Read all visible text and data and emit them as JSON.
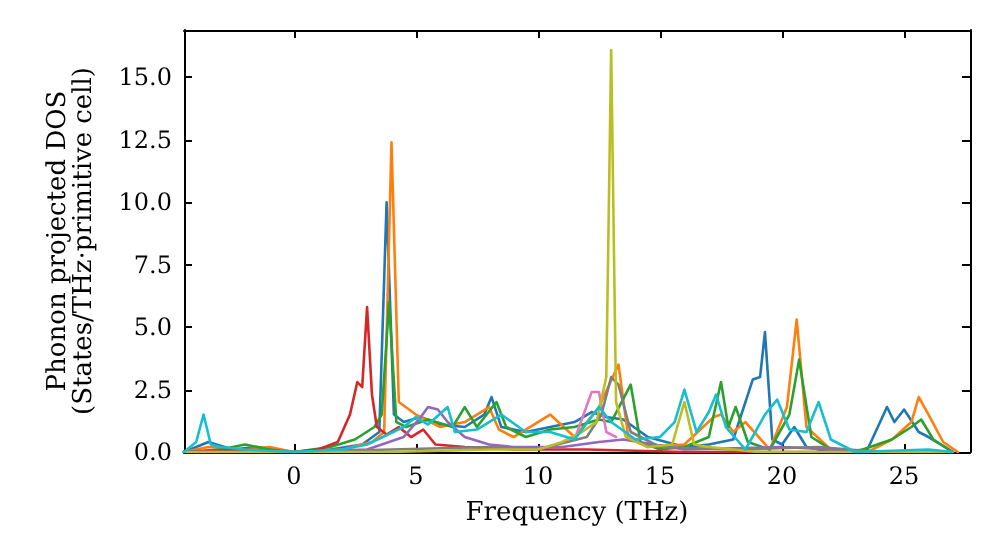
{
  "chart_data": {
    "type": "line",
    "xlabel": "Frequency (THz)",
    "ylabel": "Phonon projected DOS\n(States/THz·primitive cell)",
    "xlim": [
      -4.5,
      27.7
    ],
    "xticks": [
      0,
      5,
      10,
      15,
      20,
      25
    ],
    "ylim": [
      0,
      16.9
    ],
    "yticks": [
      {
        "value": 0,
        "label": "0.0"
      },
      {
        "value": 2.5,
        "label": "2.5"
      },
      {
        "value": 5,
        "label": "5.0"
      },
      {
        "value": 7.5,
        "label": "7.5"
      },
      {
        "value": 10,
        "label": "10.0"
      },
      {
        "value": 12.5,
        "label": "12.5"
      },
      {
        "value": 15,
        "label": "15.0"
      }
    ],
    "grid": false,
    "marker": "none",
    "line_style": "solid",
    "series": [
      {
        "color": "#1f77b4",
        "x": [
          -4.5,
          -3.5,
          -2.5,
          -1.5,
          0,
          1.5,
          2.8,
          3.5,
          3.8,
          4.1,
          4.5,
          5.2,
          6,
          7,
          7.8,
          8.1,
          8.5,
          9.5,
          10.5,
          11.5,
          12.2,
          12.8,
          13.5,
          14.5,
          16,
          17,
          18,
          18.8,
          19.1,
          19.3,
          19.6,
          20,
          20.5,
          21,
          22,
          23.5,
          24.3,
          24.6,
          25,
          25.6,
          26,
          27
        ],
        "values": [
          0,
          0.4,
          0.1,
          0.2,
          0,
          0.1,
          0.3,
          0.8,
          10,
          1.5,
          1.2,
          1.4,
          1.1,
          1,
          1.5,
          2.2,
          1,
          0.8,
          1,
          1.2,
          1.6,
          1.4,
          1.3,
          0.6,
          0.2,
          0.3,
          0.5,
          2.9,
          3,
          4.8,
          0.5,
          0.3,
          1,
          0.2,
          0,
          0.1,
          1.8,
          1.2,
          1.7,
          0.8,
          0.6,
          0
        ]
      },
      {
        "color": "#ff7f0e",
        "x": [
          -4.5,
          -3.5,
          -2,
          -1,
          0,
          2,
          3.2,
          3.7,
          4,
          4.3,
          5,
          6,
          7,
          8,
          8.4,
          9,
          10.5,
          11.5,
          12.5,
          13.3,
          13.7,
          14.5,
          16,
          17.2,
          17.5,
          18,
          18.5,
          19.5,
          20.2,
          20.6,
          21,
          22,
          23.5,
          24.5,
          25.3,
          25.6,
          26,
          26.6,
          27.2
        ],
        "values": [
          0,
          0.2,
          0.1,
          0.2,
          0,
          0.1,
          0.4,
          0.8,
          12.4,
          2,
          1.5,
          1,
          1.2,
          1.8,
          0.9,
          0.6,
          1.5,
          0.6,
          1.8,
          3.5,
          0.6,
          0.2,
          0.3,
          1.4,
          1.5,
          0.8,
          1.2,
          0.1,
          1.8,
          5.3,
          1,
          0.1,
          0,
          0.5,
          1.2,
          2.2,
          1.5,
          0.4,
          0
        ]
      },
      {
        "color": "#2ca02c",
        "x": [
          -4.5,
          -3,
          -2,
          -1,
          0,
          1.5,
          2.5,
          3.3,
          3.6,
          3.9,
          4.2,
          4.6,
          5.5,
          6.5,
          7,
          7.5,
          8.3,
          8.7,
          9.5,
          10.5,
          11.5,
          12.5,
          13,
          13.8,
          14.2,
          15,
          16,
          17,
          17.5,
          17.8,
          18.1,
          18.6,
          19.5,
          20.3,
          20.7,
          21.2,
          22,
          23,
          24.5,
          25.3,
          25.7,
          26.2,
          27
        ],
        "values": [
          0,
          0.1,
          0.3,
          0.1,
          0,
          0.2,
          0.5,
          1,
          1.5,
          6,
          1.2,
          1,
          1.3,
          1,
          1.8,
          1,
          2,
          1,
          0.6,
          0.9,
          1,
          1.3,
          1.2,
          2.7,
          0.4,
          0.1,
          0.2,
          0.6,
          2.8,
          1,
          1.8,
          0.4,
          0.1,
          1.5,
          3.7,
          0.6,
          0.1,
          0,
          0.5,
          1,
          1.3,
          0.5,
          0
        ]
      },
      {
        "color": "#d62728",
        "x": [
          -4.5,
          -2,
          0,
          1,
          1.8,
          2.3,
          2.6,
          2.8,
          3,
          3.2,
          3.4,
          3.8,
          4.3,
          4.8,
          5.3,
          5.8,
          7,
          9,
          12,
          16,
          22,
          27
        ],
        "values": [
          0,
          0.1,
          0,
          0.1,
          0.4,
          1.5,
          2.8,
          2.6,
          5.8,
          2.3,
          1,
          0.7,
          1,
          0.6,
          0.9,
          0.3,
          0.2,
          0.1,
          0.1,
          0,
          0,
          0
        ]
      },
      {
        "color": "#9467bd",
        "x": [
          -4.5,
          0,
          3,
          4.5,
          5.2,
          5.5,
          5.9,
          6.3,
          7,
          8,
          9,
          11,
          12.5,
          13.5,
          16,
          20,
          24,
          27
        ],
        "values": [
          0,
          0,
          0.1,
          0.6,
          1.4,
          1.8,
          1.7,
          1.2,
          0.6,
          0.3,
          0.2,
          0.2,
          0.4,
          0.5,
          0.1,
          0.2,
          0,
          0
        ]
      },
      {
        "color": "#e377c2",
        "x": [
          11.5,
          12.2,
          12.5,
          12.8,
          13.2
        ],
        "values": [
          0.5,
          2.4,
          2.4,
          0.8,
          0.6
        ]
      },
      {
        "color": "#7f7f7f",
        "x": [
          -4.5,
          0,
          4,
          8,
          10,
          12,
          12.6,
          13,
          13.3,
          13.8,
          15,
          18,
          21.5,
          24,
          27
        ],
        "values": [
          0,
          0,
          0.1,
          0.2,
          0.1,
          0.6,
          1.5,
          3,
          2.7,
          0.8,
          0.2,
          0.1,
          0.2,
          0,
          0
        ]
      },
      {
        "color": "#bcbd22",
        "x": [
          -4.5,
          0,
          4,
          8,
          10,
          11,
          11.8,
          12.4,
          12.8,
          13,
          13.2,
          13.6,
          14.5,
          15.5,
          16,
          16.4,
          17,
          19,
          23,
          27
        ],
        "values": [
          0,
          0,
          0,
          0.1,
          0.1,
          0.4,
          0.8,
          1.2,
          3,
          16.1,
          2,
          0.6,
          0.2,
          0.3,
          2,
          0.3,
          0.2,
          0,
          0,
          0
        ]
      },
      {
        "color": "#17becf",
        "x": [
          -4.5,
          -4,
          -3.7,
          -3.4,
          -3,
          -2,
          0,
          2,
          3,
          4.5,
          5,
          5.5,
          6.3,
          6.6,
          7.5,
          8.5,
          9.5,
          10.5,
          11.5,
          12.5,
          13,
          14,
          15,
          15.6,
          16,
          16.5,
          17,
          17.3,
          17.7,
          18.5,
          19.3,
          19.8,
          20.3,
          21,
          21.5,
          22,
          23,
          26,
          27
        ],
        "values": [
          0,
          0.4,
          1.5,
          0.3,
          0.2,
          0.1,
          0,
          0.1,
          0.3,
          1,
          1.4,
          1.1,
          1.8,
          0.8,
          0.9,
          1.5,
          0.8,
          0.8,
          0.5,
          1.8,
          1.2,
          0.5,
          0.6,
          1.2,
          2.5,
          0.8,
          1.6,
          2.3,
          1,
          0.1,
          1.5,
          2.1,
          0.9,
          0.8,
          2,
          0.5,
          0,
          0.1,
          0
        ]
      }
    ]
  }
}
